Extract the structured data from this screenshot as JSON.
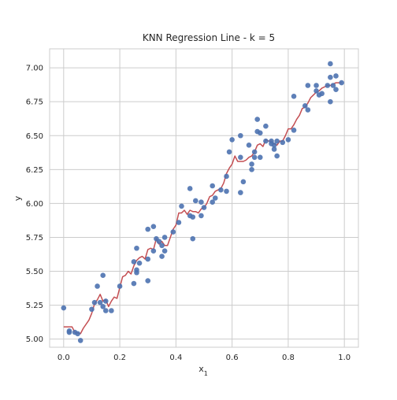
{
  "chart_data": {
    "type": "scatter",
    "title": "KNN Regression Line - k = 5",
    "xlabel": "x",
    "xlabel_sub": "1",
    "ylabel": "y",
    "xlim": [
      -0.05,
      1.05
    ],
    "ylim": [
      4.94,
      7.14
    ],
    "xticks": [
      0.0,
      0.2,
      0.4,
      0.6,
      0.8,
      1.0
    ],
    "xtick_labels": [
      "0.0",
      "0.2",
      "0.4",
      "0.6",
      "0.8",
      "1.0"
    ],
    "yticks": [
      5.0,
      5.25,
      5.5,
      5.75,
      6.0,
      6.25,
      6.5,
      6.75,
      7.0
    ],
    "ytick_labels": [
      "5.00",
      "5.25",
      "5.50",
      "5.75",
      "6.00",
      "6.25",
      "6.50",
      "6.75",
      "7.00"
    ],
    "grid": true,
    "legend": "none",
    "colors": {
      "points": "#4c72b0",
      "line": "#c44e52",
      "grid": "#cccccc",
      "spine": "#cccccc",
      "text": "#262626"
    },
    "series": [
      {
        "type": "scatter",
        "points": [
          [
            0.0,
            5.23
          ],
          [
            0.02,
            5.05
          ],
          [
            0.02,
            5.06
          ],
          [
            0.04,
            5.05
          ],
          [
            0.05,
            5.04
          ],
          [
            0.06,
            4.99
          ],
          [
            0.1,
            5.22
          ],
          [
            0.11,
            5.27
          ],
          [
            0.12,
            5.39
          ],
          [
            0.13,
            5.27
          ],
          [
            0.14,
            5.24
          ],
          [
            0.14,
            5.47
          ],
          [
            0.15,
            5.28
          ],
          [
            0.15,
            5.21
          ],
          [
            0.17,
            5.21
          ],
          [
            0.2,
            5.39
          ],
          [
            0.25,
            5.41
          ],
          [
            0.25,
            5.57
          ],
          [
            0.26,
            5.49
          ],
          [
            0.26,
            5.51
          ],
          [
            0.26,
            5.67
          ],
          [
            0.27,
            5.56
          ],
          [
            0.3,
            5.43
          ],
          [
            0.3,
            5.81
          ],
          [
            0.3,
            5.59
          ],
          [
            0.32,
            5.83
          ],
          [
            0.32,
            5.65
          ],
          [
            0.33,
            5.74
          ],
          [
            0.34,
            5.72
          ],
          [
            0.35,
            5.69
          ],
          [
            0.35,
            5.61
          ],
          [
            0.36,
            5.65
          ],
          [
            0.36,
            5.75
          ],
          [
            0.39,
            5.79
          ],
          [
            0.41,
            5.86
          ],
          [
            0.42,
            5.98
          ],
          [
            0.45,
            6.11
          ],
          [
            0.45,
            5.91
          ],
          [
            0.46,
            5.9
          ],
          [
            0.46,
            5.74
          ],
          [
            0.47,
            6.02
          ],
          [
            0.49,
            6.01
          ],
          [
            0.49,
            5.91
          ],
          [
            0.5,
            5.97
          ],
          [
            0.53,
            6.01
          ],
          [
            0.53,
            6.13
          ],
          [
            0.54,
            6.04
          ],
          [
            0.56,
            6.1
          ],
          [
            0.58,
            6.09
          ],
          [
            0.58,
            6.2
          ],
          [
            0.59,
            6.38
          ],
          [
            0.6,
            6.47
          ],
          [
            0.63,
            6.08
          ],
          [
            0.63,
            6.34
          ],
          [
            0.63,
            6.5
          ],
          [
            0.64,
            6.16
          ],
          [
            0.66,
            6.43
          ],
          [
            0.67,
            6.25
          ],
          [
            0.67,
            6.29
          ],
          [
            0.68,
            6.34
          ],
          [
            0.68,
            6.38
          ],
          [
            0.69,
            6.53
          ],
          [
            0.69,
            6.62
          ],
          [
            0.7,
            6.34
          ],
          [
            0.7,
            6.52
          ],
          [
            0.72,
            6.57
          ],
          [
            0.72,
            6.46
          ],
          [
            0.74,
            6.44
          ],
          [
            0.74,
            6.46
          ],
          [
            0.75,
            6.4
          ],
          [
            0.75,
            6.43
          ],
          [
            0.76,
            6.46
          ],
          [
            0.76,
            6.35
          ],
          [
            0.78,
            6.45
          ],
          [
            0.8,
            6.47
          ],
          [
            0.82,
            6.54
          ],
          [
            0.82,
            6.79
          ],
          [
            0.86,
            6.72
          ],
          [
            0.87,
            6.69
          ],
          [
            0.87,
            6.87
          ],
          [
            0.9,
            6.87
          ],
          [
            0.9,
            6.83
          ],
          [
            0.91,
            6.8
          ],
          [
            0.92,
            6.81
          ],
          [
            0.94,
            6.87
          ],
          [
            0.95,
            7.03
          ],
          [
            0.95,
            6.75
          ],
          [
            0.95,
            6.93
          ],
          [
            0.96,
            6.87
          ],
          [
            0.97,
            6.94
          ],
          [
            0.97,
            6.84
          ],
          [
            0.99,
            6.89
          ]
        ]
      },
      {
        "type": "line",
        "points": [
          [
            0.0,
            5.09
          ],
          [
            0.03,
            5.09
          ],
          [
            0.04,
            5.05
          ],
          [
            0.06,
            5.04
          ],
          [
            0.07,
            5.08
          ],
          [
            0.09,
            5.14
          ],
          [
            0.1,
            5.19
          ],
          [
            0.11,
            5.26
          ],
          [
            0.12,
            5.29
          ],
          [
            0.13,
            5.33
          ],
          [
            0.14,
            5.28
          ],
          [
            0.15,
            5.29
          ],
          [
            0.16,
            5.24
          ],
          [
            0.17,
            5.28
          ],
          [
            0.18,
            5.31
          ],
          [
            0.19,
            5.3
          ],
          [
            0.2,
            5.38
          ],
          [
            0.21,
            5.46
          ],
          [
            0.22,
            5.47
          ],
          [
            0.23,
            5.5
          ],
          [
            0.24,
            5.48
          ],
          [
            0.25,
            5.54
          ],
          [
            0.26,
            5.58
          ],
          [
            0.27,
            5.6
          ],
          [
            0.28,
            5.61
          ],
          [
            0.29,
            5.59
          ],
          [
            0.3,
            5.66
          ],
          [
            0.31,
            5.67
          ],
          [
            0.32,
            5.66
          ],
          [
            0.33,
            5.74
          ],
          [
            0.34,
            5.7
          ],
          [
            0.35,
            5.72
          ],
          [
            0.36,
            5.69
          ],
          [
            0.37,
            5.69
          ],
          [
            0.38,
            5.75
          ],
          [
            0.39,
            5.81
          ],
          [
            0.4,
            5.84
          ],
          [
            0.41,
            5.93
          ],
          [
            0.42,
            5.93
          ],
          [
            0.43,
            5.95
          ],
          [
            0.44,
            5.92
          ],
          [
            0.45,
            5.95
          ],
          [
            0.46,
            5.94
          ],
          [
            0.47,
            5.94
          ],
          [
            0.48,
            5.93
          ],
          [
            0.49,
            5.96
          ],
          [
            0.5,
            5.97
          ],
          [
            0.51,
            6.0
          ],
          [
            0.52,
            6.05
          ],
          [
            0.53,
            6.06
          ],
          [
            0.54,
            6.09
          ],
          [
            0.55,
            6.1
          ],
          [
            0.56,
            6.11
          ],
          [
            0.57,
            6.15
          ],
          [
            0.58,
            6.22
          ],
          [
            0.59,
            6.26
          ],
          [
            0.6,
            6.29
          ],
          [
            0.61,
            6.35
          ],
          [
            0.62,
            6.31
          ],
          [
            0.63,
            6.31
          ],
          [
            0.64,
            6.31
          ],
          [
            0.65,
            6.32
          ],
          [
            0.66,
            6.34
          ],
          [
            0.67,
            6.35
          ],
          [
            0.68,
            6.38
          ],
          [
            0.69,
            6.43
          ],
          [
            0.7,
            6.44
          ],
          [
            0.71,
            6.42
          ],
          [
            0.72,
            6.47
          ],
          [
            0.73,
            6.46
          ],
          [
            0.74,
            6.46
          ],
          [
            0.75,
            6.44
          ],
          [
            0.76,
            6.43
          ],
          [
            0.77,
            6.46
          ],
          [
            0.78,
            6.46
          ],
          [
            0.79,
            6.5
          ],
          [
            0.8,
            6.55
          ],
          [
            0.81,
            6.55
          ],
          [
            0.82,
            6.58
          ],
          [
            0.83,
            6.62
          ],
          [
            0.84,
            6.65
          ],
          [
            0.85,
            6.7
          ],
          [
            0.86,
            6.71
          ],
          [
            0.87,
            6.74
          ],
          [
            0.88,
            6.78
          ],
          [
            0.89,
            6.8
          ],
          [
            0.9,
            6.82
          ],
          [
            0.91,
            6.83
          ],
          [
            0.92,
            6.85
          ],
          [
            0.93,
            6.86
          ],
          [
            0.94,
            6.87
          ],
          [
            0.95,
            6.87
          ],
          [
            0.96,
            6.88
          ],
          [
            0.97,
            6.89
          ],
          [
            0.99,
            6.89
          ]
        ]
      }
    ]
  }
}
